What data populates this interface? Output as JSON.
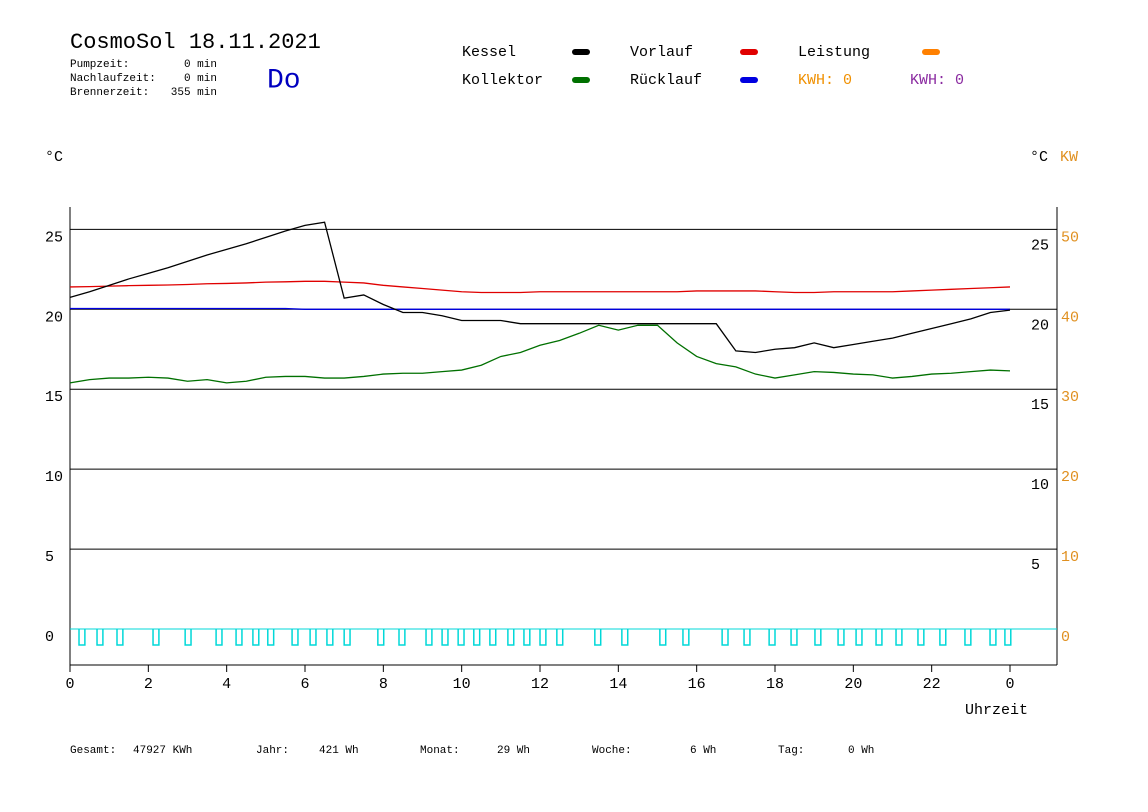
{
  "header": {
    "title": "CosmoSol 18.11.2021",
    "day": "Do",
    "stats": [
      {
        "label": "Pumpzeit:",
        "value": "0 min"
      },
      {
        "label": "Nachlaufzeit:",
        "value": "0 min"
      },
      {
        "label": "Brennerzeit:",
        "value": "355 min"
      }
    ]
  },
  "kwh": [
    {
      "text": "KWH: 0",
      "color": "#f09000"
    },
    {
      "text": "KWH: 0",
      "color": "#8a2aa0"
    }
  ],
  "footer": [
    {
      "label": "Gesamt:",
      "value": "47927 KWh"
    },
    {
      "label": "Jahr:",
      "value": "421 Wh"
    },
    {
      "label": "Monat:",
      "value": "29 Wh"
    },
    {
      "label": "Woche:",
      "value": "6 Wh"
    },
    {
      "label": "Tag:",
      "value": "0 Wh"
    }
  ],
  "chart_data": {
    "type": "line",
    "y_label": "°C",
    "y_right_label": "°C",
    "y2_label": "KW",
    "x_label": "Uhrzeit",
    "xlim": [
      0,
      25.2
    ],
    "xticks": [
      0,
      2,
      4,
      6,
      8,
      10,
      12,
      14,
      16,
      18,
      20,
      22,
      {
        "value": 24,
        "label": "0"
      }
    ],
    "ylim": [
      -2.25,
      26.4
    ],
    "yticks": [
      0,
      5,
      10,
      15,
      20,
      25
    ],
    "y_right_ticks": [
      5,
      10,
      15,
      20,
      25
    ],
    "y2lim": [
      -4.5,
      52.8
    ],
    "y2ticks": [
      0,
      10,
      20,
      30,
      40,
      50
    ],
    "y2_color": "#e09020",
    "grid": true,
    "x": [
      0,
      0.5,
      1,
      1.5,
      2,
      2.5,
      3,
      3.5,
      4,
      4.5,
      5,
      5.5,
      6,
      6.5,
      7,
      7.5,
      8,
      8.5,
      9,
      9.5,
      10,
      10.5,
      11,
      11.5,
      12,
      12.5,
      13,
      13.5,
      14,
      14.5,
      15,
      15.5,
      16,
      16.5,
      17,
      17.5,
      18,
      18.5,
      19,
      19.5,
      20,
      20.5,
      21,
      21.5,
      22,
      22.5,
      23,
      23.5,
      24
    ],
    "series": [
      {
        "name": "Kessel",
        "color": "#000000",
        "values": [
          20.75,
          21.1,
          21.5,
          21.9,
          22.25,
          22.6,
          23.0,
          23.4,
          23.75,
          24.1,
          24.5,
          24.9,
          25.25,
          25.45,
          20.7,
          20.9,
          20.3,
          19.8,
          19.8,
          19.6,
          19.3,
          19.3,
          19.3,
          19.1,
          19.1,
          19.1,
          19.1,
          19.1,
          19.1,
          19.1,
          19.1,
          19.1,
          19.1,
          19.1,
          17.4,
          17.3,
          17.5,
          17.6,
          17.9,
          17.6,
          17.8,
          18.0,
          18.2,
          18.5,
          18.8,
          19.1,
          19.4,
          19.8,
          19.95
        ]
      },
      {
        "name": "Vorlauf",
        "color": "#e00000",
        "values": [
          21.4,
          21.42,
          21.45,
          21.48,
          21.5,
          21.52,
          21.55,
          21.6,
          21.62,
          21.65,
          21.7,
          21.72,
          21.75,
          21.75,
          21.7,
          21.65,
          21.5,
          21.4,
          21.3,
          21.2,
          21.1,
          21.05,
          21.05,
          21.05,
          21.1,
          21.1,
          21.1,
          21.1,
          21.1,
          21.1,
          21.1,
          21.1,
          21.15,
          21.15,
          21.15,
          21.15,
          21.1,
          21.05,
          21.05,
          21.1,
          21.1,
          21.1,
          21.1,
          21.15,
          21.2,
          21.25,
          21.3,
          21.35,
          21.4
        ]
      },
      {
        "name": "Leistung",
        "color": "#ff8000",
        "axis": "y2"
      },
      {
        "name": "Kollektor",
        "color": "#007000",
        "values": [
          15.4,
          15.6,
          15.7,
          15.7,
          15.75,
          15.7,
          15.5,
          15.6,
          15.4,
          15.5,
          15.75,
          15.8,
          15.8,
          15.7,
          15.7,
          15.8,
          15.95,
          16.0,
          16.0,
          16.1,
          16.2,
          16.5,
          17.05,
          17.3,
          17.75,
          18.05,
          18.5,
          19.0,
          18.7,
          19.0,
          19.0,
          17.9,
          17.05,
          16.6,
          16.4,
          15.95,
          15.7,
          15.9,
          16.1,
          16.05,
          15.95,
          15.9,
          15.7,
          15.8,
          15.95,
          16.0,
          16.1,
          16.2,
          16.15
        ]
      },
      {
        "name": "Rücklauf",
        "color": "#0000e0",
        "values": [
          20.05,
          20.05,
          20.05,
          20.05,
          20.05,
          20.05,
          20.05,
          20.05,
          20.05,
          20.05,
          20.05,
          20.05,
          20.0,
          20.0,
          20.0,
          20.0,
          20.0,
          20.0,
          20.0,
          20.0,
          20.0,
          20.0,
          20.0,
          20.0,
          20.0,
          20.0,
          20.0,
          20.0,
          20.0,
          20.0,
          20.0,
          20.0,
          20.0,
          20.0,
          20.0,
          20.0,
          20.0,
          20.0,
          20.0,
          20.0,
          20.0,
          20.0,
          20.0,
          20.0,
          20.0,
          20.0,
          20.0,
          20.0,
          20.0
        ]
      }
    ],
    "pulses": {
      "color": "#00d8d8",
      "level": -1,
      "width": 0.15,
      "x": [
        0.23,
        0.69,
        1.2,
        2.12,
        2.94,
        3.73,
        4.24,
        4.67,
        5.05,
        5.67,
        6.13,
        6.56,
        7.0,
        7.86,
        8.4,
        9.09,
        9.5,
        9.91,
        10.31,
        10.72,
        11.18,
        11.59,
        12.0,
        12.43,
        13.4,
        14.09,
        15.06,
        15.65,
        16.65,
        17.21,
        17.85,
        18.41,
        19.02,
        19.61,
        20.07,
        20.58,
        21.09,
        21.65,
        22.21,
        22.85,
        23.49,
        23.87
      ]
    }
  }
}
